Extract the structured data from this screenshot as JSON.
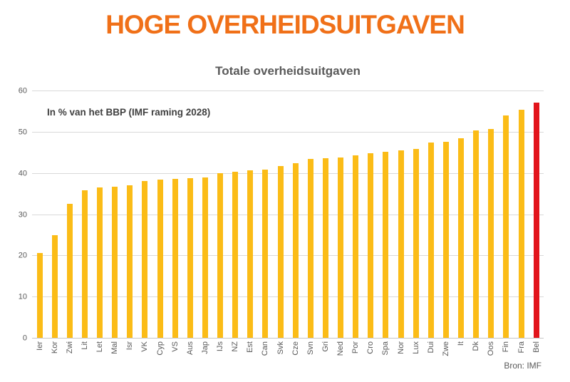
{
  "header": {
    "title": "HOGE OVERHEIDSUITGAVEN"
  },
  "colors": {
    "title_orange": "#F07018",
    "bar_gold": "#FBBC17",
    "bar_red": "#E2141B",
    "text_gray": "#595959",
    "gridline_gray": "#D9D9D9"
  },
  "chart_data": {
    "type": "bar",
    "title": "Totale overheidsuitgaven",
    "annotation": "In % van het BBP (IMF raming 2028)",
    "source": "Bron: IMF",
    "categories": [
      "Ier",
      "Kor",
      "Zwi",
      "Lit",
      "Let",
      "Mal",
      "Isr",
      "VK",
      "Cyp",
      "VS",
      "Aus",
      "Jap",
      "IJs",
      "NZ",
      "Est",
      "Can",
      "Svk",
      "Cze",
      "Svn",
      "Gri",
      "Ned",
      "Por",
      "Cro",
      "Spa",
      "Nor",
      "Lux",
      "Dui",
      "Zwe",
      "It",
      "Dk",
      "Oos",
      "Fin",
      "Fra",
      "Bel"
    ],
    "values": [
      20.7,
      25.0,
      32.7,
      35.9,
      36.6,
      36.8,
      37.1,
      38.3,
      38.6,
      38.7,
      38.9,
      39.1,
      40.2,
      40.4,
      40.8,
      41.0,
      41.8,
      42.5,
      43.5,
      43.7,
      44.0,
      44.4,
      44.9,
      45.3,
      45.6,
      46.0,
      47.5,
      47.8,
      48.6,
      50.5,
      50.9,
      54.1,
      55.5,
      57.3
    ],
    "ylim": [
      0,
      60
    ],
    "yticks": [
      0,
      10,
      20,
      30,
      40,
      50,
      60
    ],
    "xlabel": "",
    "ylabel": "",
    "grid": true,
    "legend": "none",
    "bar_color": "#FBBC17",
    "highlight_category": "Bel",
    "highlight_color": "#E2141B"
  }
}
